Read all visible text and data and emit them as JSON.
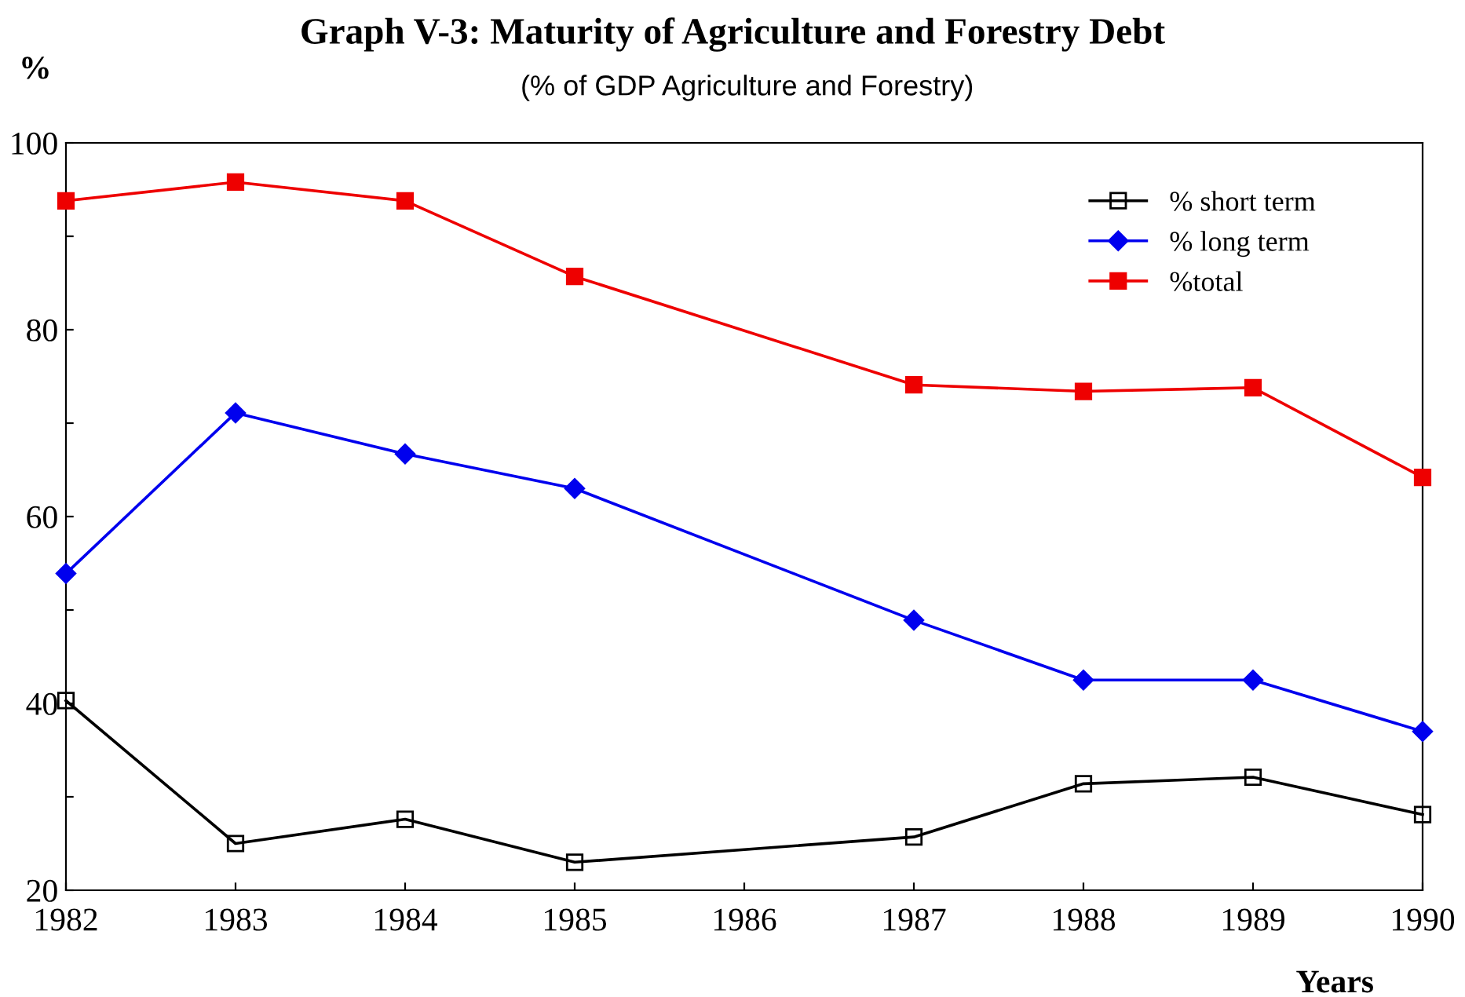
{
  "chart_data": {
    "type": "line",
    "title": "Graph V-3: Maturity of Agriculture and Forestry Debt",
    "subtitle": "(% of GDP Agriculture and Forestry)",
    "xlabel": "Years",
    "ylabel": "%",
    "x": [
      1982,
      1983,
      1984,
      1985,
      1987,
      1988,
      1989,
      1990
    ],
    "series": [
      {
        "name": "% short term",
        "color": "#000000",
        "marker": "square",
        "values": [
          40.3,
          25.0,
          27.6,
          23.0,
          25.7,
          31.4,
          32.1,
          28.1
        ]
      },
      {
        "name": "% long term",
        "color": "#0000ee",
        "marker": "diamond",
        "values": [
          53.9,
          71.1,
          66.7,
          63.0,
          48.9,
          42.5,
          42.5,
          37.0
        ]
      },
      {
        "name": "%total",
        "color": "#ee0000",
        "marker": "square",
        "values": [
          93.8,
          95.8,
          93.8,
          85.7,
          74.1,
          73.4,
          73.8,
          64.2
        ]
      }
    ],
    "xlim": [
      1982,
      1990
    ],
    "xticks": [
      1982,
      1983,
      1984,
      1985,
      1986,
      1987,
      1988,
      1989,
      1990
    ],
    "ylim": [
      20,
      100
    ],
    "yticks": [
      20,
      {
        "value": 30,
        "label": null
      },
      40,
      {
        "value": 50,
        "label": null
      },
      60,
      {
        "value": 70,
        "label": null
      },
      80,
      {
        "value": 90,
        "label": null
      },
      100
    ],
    "grid": false,
    "legend": "top right",
    "line_style": "solid"
  }
}
